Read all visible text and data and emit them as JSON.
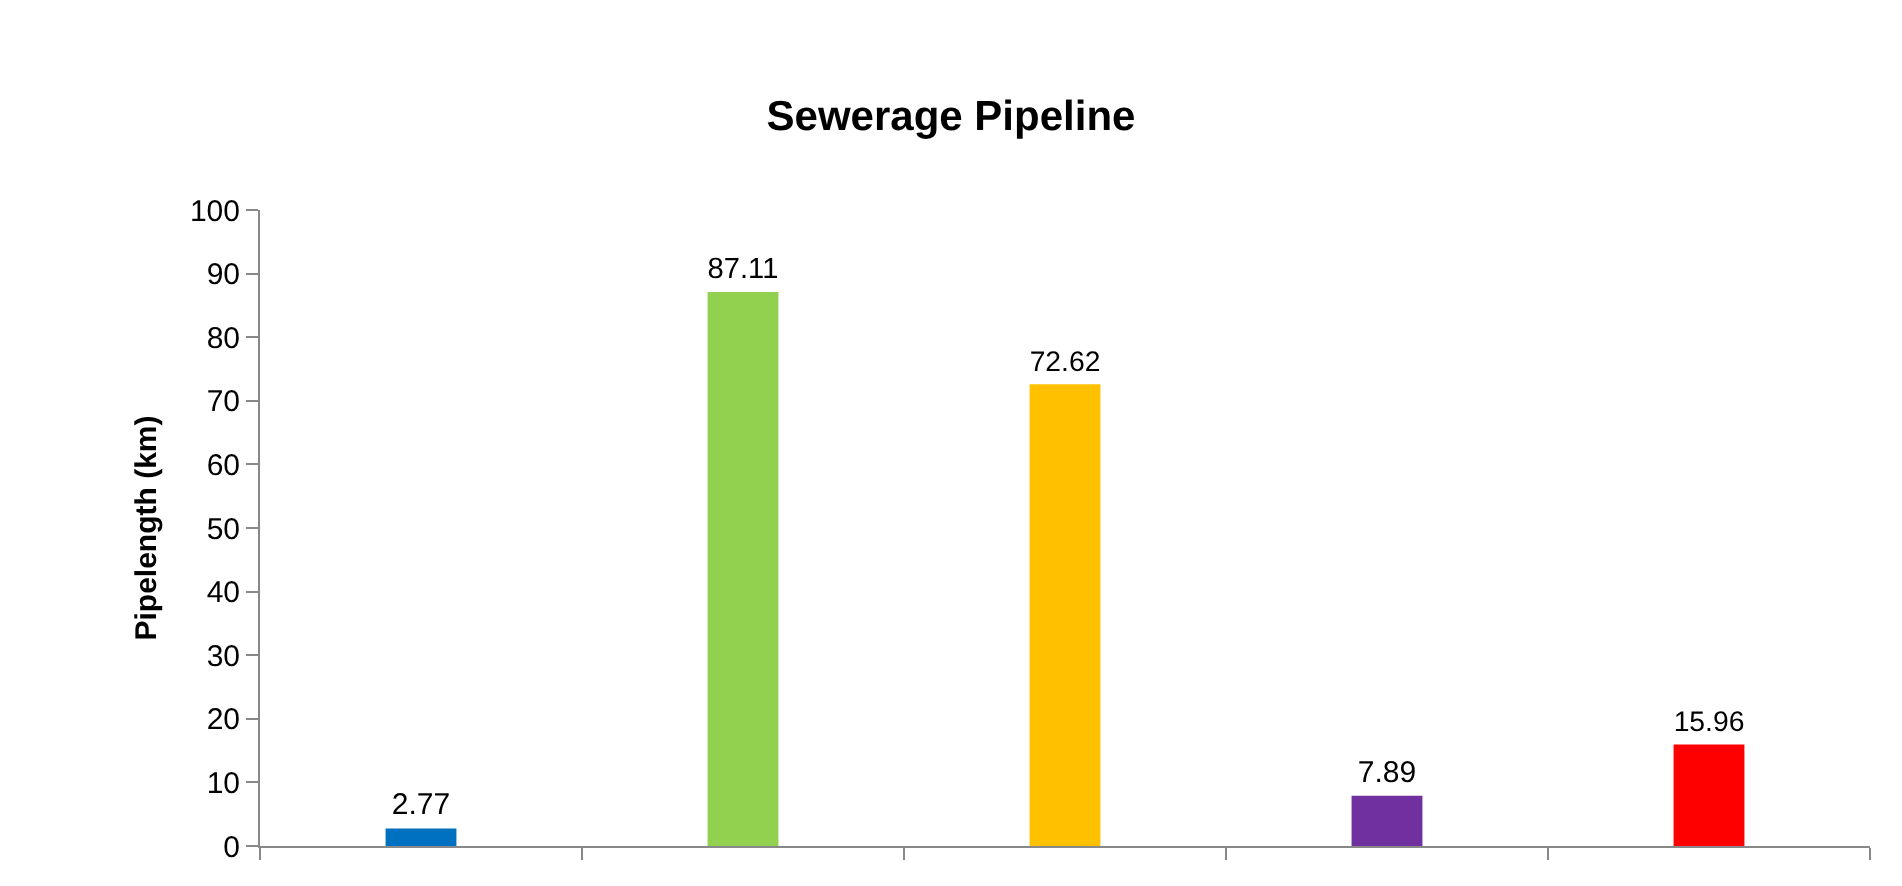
{
  "chart_data": {
    "type": "bar",
    "title": "Sewerage Pipeline",
    "ylabel": "Pipelength (km)",
    "categories": [
      null,
      null,
      null,
      null,
      null
    ],
    "values": [
      2.77,
      87.11,
      72.62,
      7.89,
      15.96
    ],
    "colors": [
      "#0070c0",
      "#92d050",
      "#ffc000",
      "#7030a0",
      "#ff0000"
    ],
    "ylim": [
      0,
      100
    ],
    "yticks": [
      0,
      10,
      20,
      30,
      40,
      50,
      60,
      70,
      80,
      90,
      100
    ],
    "data_labels": true
  }
}
